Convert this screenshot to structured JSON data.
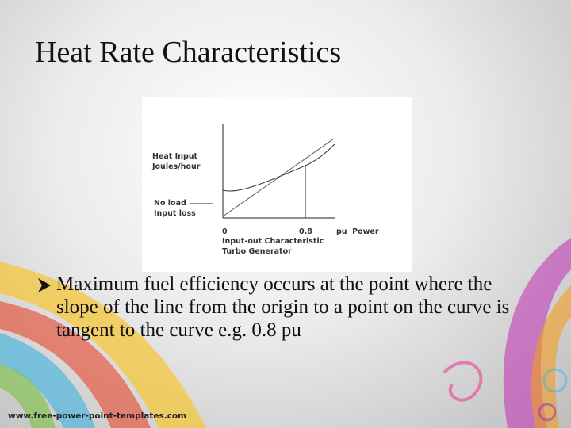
{
  "title": "Heat Rate Characteristics",
  "figure": {
    "y_label": [
      "Heat Input",
      "Joules/hour"
    ],
    "no_load_label": [
      "No load",
      "Input loss"
    ],
    "x_labels": [
      "0",
      "0.8",
      "pu  Power"
    ],
    "caption": [
      "Input-out Characteristic",
      "Turbo Generator"
    ]
  },
  "bullet": "Maximum fuel efficiency occurs at the point where the slope of the line from the origin to a point on the curve is tangent to the curve e.g. 0.8 pu",
  "footer": "www.free-power-point-templates.com"
}
